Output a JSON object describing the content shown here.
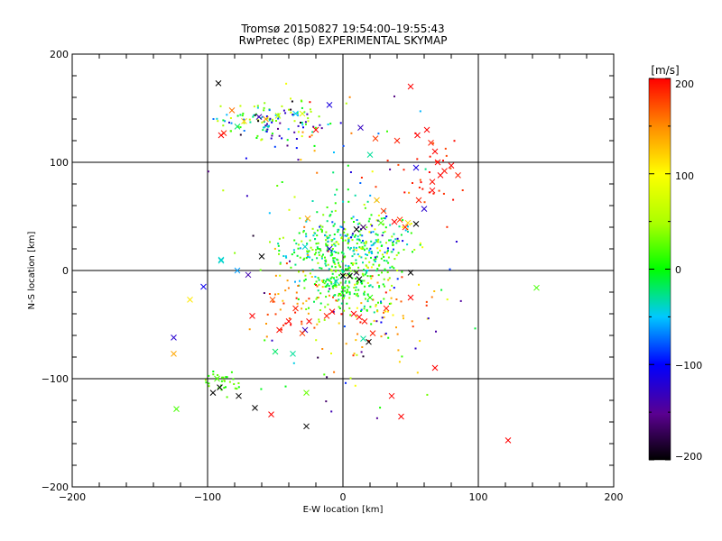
{
  "chart_data": {
    "type": "scatter",
    "title": "Tromsø 20150827 19:54:00–19:55:43",
    "subtitle": "RwPretec (8p) EXPERIMENTAL SKYMAP",
    "xlabel": "E-W location [km]",
    "ylabel": "N-S location [km]",
    "xlim": [
      -200,
      200
    ],
    "ylim": [
      -200,
      200
    ],
    "xticks": [
      "−200",
      "−100",
      "0",
      "100",
      "200"
    ],
    "yticks": [
      "200",
      "100",
      "0",
      "−100",
      "−200"
    ],
    "grid": true,
    "colorbar": {
      "label": "[m/s]",
      "range": [
        -200,
        200
      ],
      "ticks": [
        "200",
        "100",
        "0",
        "−100",
        "−200"
      ]
    },
    "large_markers": [
      {
        "x": -92,
        "y": 173,
        "v": -200
      },
      {
        "x": -48,
        "y": 143,
        "v": 60
      },
      {
        "x": -57,
        "y": 140,
        "v": 150
      },
      {
        "x": -73,
        "y": 138,
        "v": 120
      },
      {
        "x": -62,
        "y": 142,
        "v": -150
      },
      {
        "x": -82,
        "y": 148,
        "v": 160
      },
      {
        "x": -78,
        "y": 133,
        "v": -20
      },
      {
        "x": -88,
        "y": 127,
        "v": 190
      },
      {
        "x": -90,
        "y": 125,
        "v": 200
      },
      {
        "x": -35,
        "y": 145,
        "v": -50
      },
      {
        "x": -30,
        "y": 145,
        "v": 80
      },
      {
        "x": -20,
        "y": 130,
        "v": 200
      },
      {
        "x": -10,
        "y": 153,
        "v": -120
      },
      {
        "x": 13,
        "y": 132,
        "v": -140
      },
      {
        "x": 20,
        "y": 107,
        "v": -30
      },
      {
        "x": 24,
        "y": 122,
        "v": 180
      },
      {
        "x": 40,
        "y": 120,
        "v": 190
      },
      {
        "x": 50,
        "y": 170,
        "v": 200
      },
      {
        "x": 55,
        "y": 125,
        "v": 200
      },
      {
        "x": 62,
        "y": 130,
        "v": 200
      },
      {
        "x": 65,
        "y": 118,
        "v": 190
      },
      {
        "x": 68,
        "y": 110,
        "v": 200
      },
      {
        "x": 70,
        "y": 100,
        "v": 200
      },
      {
        "x": 75,
        "y": 92,
        "v": 195
      },
      {
        "x": 80,
        "y": 97,
        "v": 200
      },
      {
        "x": 85,
        "y": 88,
        "v": 190
      },
      {
        "x": 72,
        "y": 88,
        "v": 200
      },
      {
        "x": 66,
        "y": 82,
        "v": 195
      },
      {
        "x": 66,
        "y": 74,
        "v": 200
      },
      {
        "x": 56,
        "y": 65,
        "v": 190
      },
      {
        "x": 60,
        "y": 57,
        "v": -130
      },
      {
        "x": 54,
        "y": 95,
        "v": -120
      },
      {
        "x": 42,
        "y": 47,
        "v": 180
      },
      {
        "x": 48,
        "y": 44,
        "v": 120
      },
      {
        "x": 54,
        "y": 43,
        "v": -200
      },
      {
        "x": 46,
        "y": 40,
        "v": 190
      },
      {
        "x": 38,
        "y": 45,
        "v": 200
      },
      {
        "x": 30,
        "y": 55,
        "v": 180
      },
      {
        "x": 25,
        "y": 65,
        "v": 130
      },
      {
        "x": 10,
        "y": 38,
        "v": -200
      },
      {
        "x": 15,
        "y": 40,
        "v": -180
      },
      {
        "x": 28,
        "y": 44,
        "v": 20
      },
      {
        "x": -26,
        "y": 48,
        "v": 140
      },
      {
        "x": -28,
        "y": 22,
        "v": -40
      },
      {
        "x": -10,
        "y": 20,
        "v": -130
      },
      {
        "x": -60,
        "y": 13,
        "v": -200
      },
      {
        "x": -90,
        "y": 9,
        "v": -40
      },
      {
        "x": -78,
        "y": 0,
        "v": -60
      },
      {
        "x": -70,
        "y": -4,
        "v": -150
      },
      {
        "x": -103,
        "y": -15,
        "v": -110
      },
      {
        "x": -113,
        "y": -27,
        "v": 110
      },
      {
        "x": -52,
        "y": -27,
        "v": 170
      },
      {
        "x": 0,
        "y": -5,
        "v": -200
      },
      {
        "x": 5,
        "y": -5,
        "v": -200
      },
      {
        "x": 10,
        "y": -2,
        "v": -180
      },
      {
        "x": 12,
        "y": -8,
        "v": -200
      },
      {
        "x": -5,
        "y": -10,
        "v": -40
      },
      {
        "x": 20,
        "y": -25,
        "v": 10
      },
      {
        "x": 32,
        "y": -35,
        "v": 190
      },
      {
        "x": 50,
        "y": -25,
        "v": 200
      },
      {
        "x": 50,
        "y": -2,
        "v": -200
      },
      {
        "x": -8,
        "y": -38,
        "v": 200
      },
      {
        "x": -12,
        "y": -42,
        "v": 190
      },
      {
        "x": 8,
        "y": -40,
        "v": 200
      },
      {
        "x": 12,
        "y": -43,
        "v": 200
      },
      {
        "x": 16,
        "y": -47,
        "v": 195
      },
      {
        "x": 22,
        "y": -58,
        "v": 190
      },
      {
        "x": 15,
        "y": -63,
        "v": -30
      },
      {
        "x": 19,
        "y": -66,
        "v": -200
      },
      {
        "x": -25,
        "y": -47,
        "v": 200
      },
      {
        "x": -28,
        "y": -55,
        "v": -140
      },
      {
        "x": -30,
        "y": -58,
        "v": 180
      },
      {
        "x": -35,
        "y": -35,
        "v": 190
      },
      {
        "x": -40,
        "y": -47,
        "v": 200
      },
      {
        "x": -47,
        "y": -55,
        "v": 195
      },
      {
        "x": -67,
        "y": -42,
        "v": 200
      },
      {
        "x": -50,
        "y": -75,
        "v": -20
      },
      {
        "x": -37,
        "y": -77,
        "v": -30
      },
      {
        "x": 68,
        "y": -90,
        "v": 200
      },
      {
        "x": 36,
        "y": -116,
        "v": 200
      },
      {
        "x": 43,
        "y": -135,
        "v": 200
      },
      {
        "x": 122,
        "y": -157,
        "v": 200
      },
      {
        "x": 143,
        "y": -16,
        "v": 20
      },
      {
        "x": -125,
        "y": -62,
        "v": -130
      },
      {
        "x": -125,
        "y": -77,
        "v": 140
      },
      {
        "x": -123,
        "y": -128,
        "v": 20
      },
      {
        "x": -96,
        "y": -113,
        "v": -200
      },
      {
        "x": -91,
        "y": -108,
        "v": -200
      },
      {
        "x": -77,
        "y": -116,
        "v": -200
      },
      {
        "x": -65,
        "y": -127,
        "v": -200
      },
      {
        "x": -27,
        "y": -113,
        "v": 30
      },
      {
        "x": -27,
        "y": -144,
        "v": -200
      },
      {
        "x": -90,
        "y": 10,
        "v": -40
      },
      {
        "x": -93,
        "y": -100,
        "v": 20
      },
      {
        "x": -53,
        "y": -133,
        "v": 200
      }
    ],
    "point_clusters": [
      {
        "cx": 0,
        "cy": 20,
        "sx": 22,
        "sy": 18,
        "count": 320,
        "vmin": -60,
        "vmax": 60
      },
      {
        "cx": 5,
        "cy": -12,
        "sx": 15,
        "sy": 14,
        "count": 180,
        "vmin": -30,
        "vmax": 50
      },
      {
        "cx": 25,
        "cy": 30,
        "sx": 15,
        "sy": 15,
        "count": 90,
        "vmin": -150,
        "vmax": 120
      },
      {
        "cx": -55,
        "cy": 140,
        "sx": 18,
        "sy": 8,
        "count": 90,
        "vmin": -80,
        "vmax": 80
      },
      {
        "cx": -45,
        "cy": 135,
        "sx": 14,
        "sy": 8,
        "count": 30,
        "vmin": -200,
        "vmax": -100
      },
      {
        "cx": -88,
        "cy": -103,
        "sx": 8,
        "sy": 6,
        "count": 30,
        "vmin": 0,
        "vmax": 40
      },
      {
        "cx": -35,
        "cy": -30,
        "sx": 15,
        "sy": 18,
        "count": 45,
        "vmin": 120,
        "vmax": 200
      },
      {
        "cx": 30,
        "cy": -35,
        "sx": 18,
        "sy": 20,
        "count": 45,
        "vmin": 100,
        "vmax": 200
      },
      {
        "cx": 65,
        "cy": 95,
        "sx": 15,
        "sy": 20,
        "count": 30,
        "vmin": 170,
        "vmax": 200
      },
      {
        "cx": -20,
        "cy": 80,
        "sx": 40,
        "sy": 50,
        "count": 60,
        "vmin": -200,
        "vmax": 200
      },
      {
        "cx": 20,
        "cy": -60,
        "sx": 40,
        "sy": 40,
        "count": 60,
        "vmin": -200,
        "vmax": 200
      }
    ]
  }
}
